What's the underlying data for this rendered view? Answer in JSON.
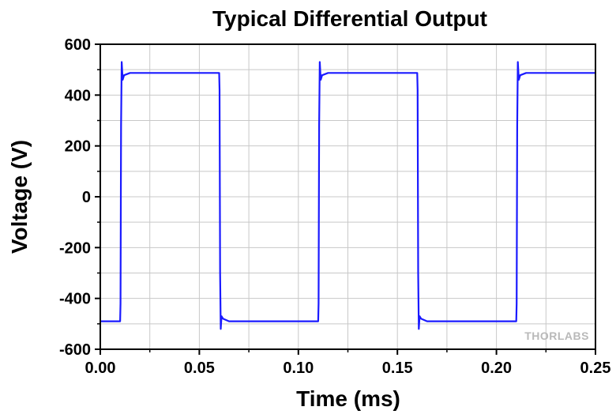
{
  "chart_data": {
    "type": "line",
    "title": "Typical Differential Output",
    "xlabel": "Time (ms)",
    "ylabel": "Voltage (V)",
    "xlim": [
      0.0,
      0.25
    ],
    "ylim": [
      -600,
      600
    ],
    "x_ticks": [
      "0.00",
      "0.05",
      "0.10",
      "0.15",
      "0.20",
      "0.25"
    ],
    "y_ticks": [
      "600",
      "400",
      "200",
      "0",
      "-200",
      "-400",
      "-600"
    ],
    "grid": true,
    "legend": "none",
    "series_color": "#1a1aff",
    "series": [
      {
        "x": [
          0.0,
          0.01,
          0.0102,
          0.0105,
          0.0108,
          0.0113,
          0.012,
          0.015,
          0.06,
          0.0602,
          0.0605,
          0.0608,
          0.0612,
          0.062,
          0.065,
          0.11,
          0.1102,
          0.1105,
          0.1108,
          0.1113,
          0.112,
          0.115,
          0.16,
          0.1602,
          0.1605,
          0.1608,
          0.1612,
          0.162,
          0.165,
          0.21,
          0.2102,
          0.2105,
          0.2108,
          0.2113,
          0.212,
          0.215,
          0.25
        ],
        "y": [
          -490,
          -490,
          -420,
          280,
          530,
          460,
          478,
          487,
          487,
          420,
          -300,
          -520,
          -470,
          -480,
          -490,
          -490,
          -420,
          280,
          530,
          460,
          478,
          487,
          487,
          420,
          -300,
          -520,
          -470,
          -480,
          -490,
          -490,
          -420,
          280,
          530,
          460,
          478,
          487,
          487
        ]
      }
    ]
  },
  "watermark_text": "THORLABS"
}
